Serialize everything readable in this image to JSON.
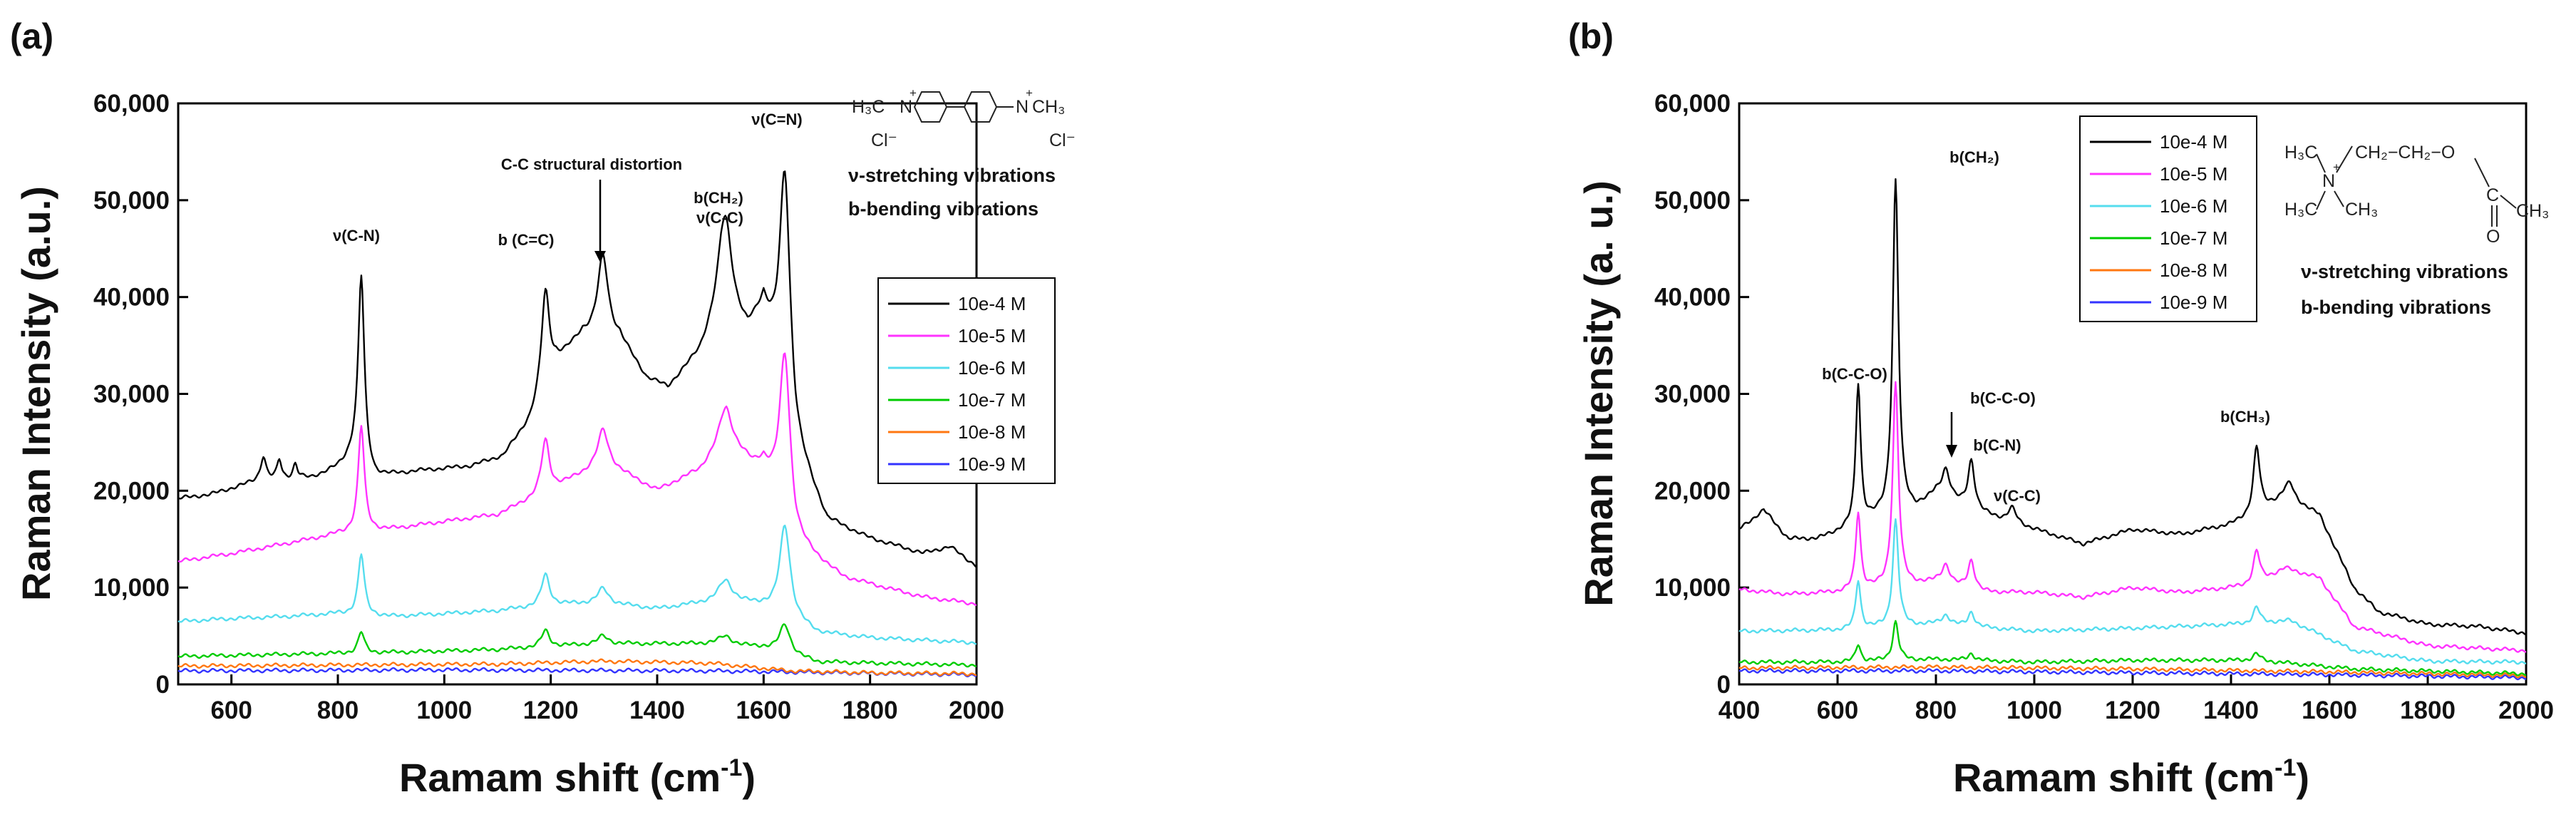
{
  "chart_data": [
    {
      "panel_label": "(a)",
      "type": "line",
      "xlabel": "Ramam shift (cm",
      "xlabel_sup": "-1",
      "xlabel_close": ")",
      "ylabel": "Raman Intensity (a.u.)",
      "xlim": [
        500,
        2000
      ],
      "ylim": [
        0,
        60000
      ],
      "xticks": [
        600,
        800,
        1000,
        1200,
        1400,
        1600,
        1800,
        2000
      ],
      "yticks": [
        0,
        10000,
        20000,
        30000,
        40000,
        50000,
        60000
      ],
      "ytick_labels": [
        "0",
        "10,000",
        "20,000",
        "30,000",
        "40,000",
        "50,000",
        "60,000"
      ],
      "legend": [
        "10e-4 M",
        "10e-5 M",
        "10e-6 M",
        "10e-7 M",
        "10e-8 M",
        "10e-9 M"
      ],
      "series": [
        {
          "name": "10e-4 M",
          "color": "#000000",
          "baseline": [
            [
              500,
              19200
            ],
            [
              560,
              19600
            ],
            [
              650,
              21000
            ],
            [
              750,
              21300
            ],
            [
              800,
              22300
            ],
            [
              830,
              23500
            ],
            [
              870,
              21300
            ],
            [
              950,
              22000
            ],
            [
              1050,
              22500
            ],
            [
              1110,
              23500
            ],
            [
              1160,
              27000
            ],
            [
              1210,
              33000
            ],
            [
              1260,
              36000
            ],
            [
              1330,
              35500
            ],
            [
              1380,
              31500
            ],
            [
              1420,
              30500
            ],
            [
              1480,
              34000
            ],
            [
              1520,
              38500
            ],
            [
              1570,
              36000
            ],
            [
              1600,
              38500
            ],
            [
              1660,
              24000
            ],
            [
              1720,
              16800
            ],
            [
              1800,
              15000
            ],
            [
              1900,
              13500
            ],
            [
              1950,
              14200
            ],
            [
              2000,
              12200
            ]
          ],
          "peaks": [
            [
              844,
              19500,
              7
            ],
            [
              1190,
              10000,
              9
            ],
            [
              1298,
              8500,
              12
            ],
            [
              1528,
              10000,
              15
            ],
            [
              1640,
              24000,
              12
            ],
            [
              660,
              2500,
              6
            ],
            [
              690,
              2000,
              5
            ],
            [
              720,
              1500,
              5
            ]
          ]
        },
        {
          "name": "10e-5 M",
          "color": "#ff33ff",
          "baseline": [
            [
              500,
              12700
            ],
            [
              600,
              13500
            ],
            [
              700,
              14500
            ],
            [
              800,
              15500
            ],
            [
              900,
              16000
            ],
            [
              1000,
              16800
            ],
            [
              1100,
              17500
            ],
            [
              1200,
              20000
            ],
            [
              1300,
              22800
            ],
            [
              1400,
              20000
            ],
            [
              1480,
              22000
            ],
            [
              1530,
              25000
            ],
            [
              1580,
              22500
            ],
            [
              1600,
              22500
            ],
            [
              1660,
              14500
            ],
            [
              1750,
              11000
            ],
            [
              1900,
              9000
            ],
            [
              2000,
              8300
            ]
          ],
          "peaks": [
            [
              844,
              11000,
              7
            ],
            [
              1190,
              5500,
              9
            ],
            [
              1298,
              3500,
              12
            ],
            [
              1528,
              3500,
              15
            ],
            [
              1640,
              17000,
              12
            ]
          ]
        },
        {
          "name": "10e-6 M",
          "color": "#55ddee",
          "baseline": [
            [
              500,
              6500
            ],
            [
              600,
              6800
            ],
            [
              700,
              7000
            ],
            [
              800,
              7300
            ],
            [
              900,
              7000
            ],
            [
              1000,
              7300
            ],
            [
              1100,
              7600
            ],
            [
              1200,
              8200
            ],
            [
              1300,
              8400
            ],
            [
              1400,
              7800
            ],
            [
              1530,
              8700
            ],
            [
              1600,
              8000
            ],
            [
              1700,
              5300
            ],
            [
              1800,
              4800
            ],
            [
              2000,
              4300
            ]
          ],
          "peaks": [
            [
              844,
              6300,
              7
            ],
            [
              1190,
              3200,
              9
            ],
            [
              1298,
              1500,
              12
            ],
            [
              1528,
              2000,
              15
            ],
            [
              1640,
              9500,
              12
            ]
          ]
        },
        {
          "name": "10e-7 M",
          "color": "#00cc00",
          "baseline": [
            [
              500,
              2900
            ],
            [
              700,
              3100
            ],
            [
              900,
              3300
            ],
            [
              1100,
              3600
            ],
            [
              1300,
              4200
            ],
            [
              1500,
              4200
            ],
            [
              1600,
              3800
            ],
            [
              1700,
              2300
            ],
            [
              2000,
              2000
            ]
          ],
          "peaks": [
            [
              844,
              2200,
              7
            ],
            [
              1190,
              1700,
              9
            ],
            [
              1298,
              800,
              12
            ],
            [
              1528,
              900,
              15
            ],
            [
              1640,
              3000,
              12
            ]
          ]
        },
        {
          "name": "10e-8 M",
          "color": "#ff7711",
          "baseline": [
            [
              500,
              1900
            ],
            [
              800,
              2000
            ],
            [
              1100,
              2100
            ],
            [
              1300,
              2400
            ],
            [
              1500,
              2200
            ],
            [
              1650,
              1400
            ],
            [
              1800,
              1200
            ],
            [
              2000,
              1100
            ]
          ],
          "peaks": []
        },
        {
          "name": "10e-9 M",
          "color": "#3333ff",
          "baseline": [
            [
              500,
              1400
            ],
            [
              1000,
              1500
            ],
            [
              1500,
              1400
            ],
            [
              2000,
              1000
            ]
          ],
          "peaks": []
        }
      ],
      "annotations": [
        "ν(C-N)",
        "b (C=C)",
        "C-C structural distortion",
        "b(CH₂)",
        "ν(C-C)",
        "ν(C=N)"
      ],
      "notes": [
        "ν-stretching vibrations",
        "b-bending vibrations"
      ],
      "molecule": {
        "left_group": "H₃C",
        "right_group": "CH₃",
        "left_charge": "+",
        "right_charge": "+",
        "n_label": "N",
        "counter_ion": "Cl⁻"
      }
    },
    {
      "panel_label": "(b)",
      "type": "line",
      "xlabel": "Ramam shift (cm",
      "xlabel_sup": "-1",
      "xlabel_close": ")",
      "ylabel": "Raman Intensity (a. u.)",
      "xlim": [
        400,
        2000
      ],
      "ylim": [
        0,
        60000
      ],
      "xticks": [
        400,
        600,
        800,
        1000,
        1200,
        1400,
        1600,
        1800,
        2000
      ],
      "yticks": [
        0,
        10000,
        20000,
        30000,
        40000,
        50000,
        60000
      ],
      "ytick_labels": [
        "0",
        "10,000",
        "20,000",
        "30,000",
        "40,000",
        "50,000",
        "60,000"
      ],
      "legend": [
        "10e-4 M",
        "10e-5 M",
        "10e-6 M",
        "10e-7 M",
        "10e-8 M",
        "10e-9 M"
      ],
      "series": [
        {
          "name": "10e-4 M",
          "color": "#000000",
          "baseline": [
            [
              400,
              16000
            ],
            [
              450,
              18000
            ],
            [
              500,
              15000
            ],
            [
              560,
              15000
            ],
            [
              620,
              16000
            ],
            [
              680,
              17000
            ],
            [
              760,
              18000
            ],
            [
              800,
              19500
            ],
            [
              900,
              17500
            ],
            [
              1000,
              16000
            ],
            [
              1100,
              14500
            ],
            [
              1200,
              16000
            ],
            [
              1300,
              15500
            ],
            [
              1400,
              16500
            ],
            [
              1450,
              17500
            ],
            [
              1510,
              19500
            ],
            [
              1580,
              17500
            ],
            [
              1650,
              10000
            ],
            [
              1700,
              7500
            ],
            [
              1800,
              6200
            ],
            [
              1900,
              6000
            ],
            [
              2000,
              5300
            ]
          ],
          "peaks": [
            [
              642,
              14500,
              6
            ],
            [
              718,
              34500,
              7
            ],
            [
              820,
              3000,
              10
            ],
            [
              872,
              5000,
              8
            ],
            [
              955,
              1500,
              10
            ],
            [
              1452,
              7000,
              8
            ],
            [
              1520,
              1500,
              10
            ]
          ]
        },
        {
          "name": "10e-5 M",
          "color": "#ff33ff",
          "baseline": [
            [
              400,
              9800
            ],
            [
              500,
              9300
            ],
            [
              600,
              9500
            ],
            [
              700,
              10000
            ],
            [
              800,
              10500
            ],
            [
              900,
              9500
            ],
            [
              1000,
              9500
            ],
            [
              1100,
              9000
            ],
            [
              1200,
              10000
            ],
            [
              1300,
              9500
            ],
            [
              1400,
              10000
            ],
            [
              1450,
              10300
            ],
            [
              1510,
              12000
            ],
            [
              1580,
              11000
            ],
            [
              1650,
              6000
            ],
            [
              1800,
              4000
            ],
            [
              2000,
              3500
            ]
          ],
          "peaks": [
            [
              642,
              8000,
              6
            ],
            [
              718,
              21000,
              7
            ],
            [
              820,
              2000,
              10
            ],
            [
              872,
              3000,
              8
            ],
            [
              1452,
              3500,
              8
            ]
          ]
        },
        {
          "name": "10e-6 M",
          "color": "#55ddee",
          "baseline": [
            [
              400,
              5500
            ],
            [
              600,
              5600
            ],
            [
              800,
              6200
            ],
            [
              1000,
              5500
            ],
            [
              1200,
              5800
            ],
            [
              1450,
              6300
            ],
            [
              1520,
              6600
            ],
            [
              1650,
              3500
            ],
            [
              1800,
              2400
            ],
            [
              2000,
              2300
            ]
          ],
          "peaks": [
            [
              642,
              5000,
              6
            ],
            [
              718,
              11000,
              7
            ],
            [
              820,
              1000,
              10
            ],
            [
              872,
              1500,
              8
            ],
            [
              1452,
              1700,
              8
            ]
          ]
        },
        {
          "name": "10e-7 M",
          "color": "#00cc00",
          "baseline": [
            [
              400,
              2300
            ],
            [
              600,
              2300
            ],
            [
              800,
              2600
            ],
            [
              1000,
              2300
            ],
            [
              1200,
              2500
            ],
            [
              1450,
              2500
            ],
            [
              1650,
              1600
            ],
            [
              2000,
              1100
            ]
          ],
          "peaks": [
            [
              642,
              1800,
              6
            ],
            [
              718,
              4000,
              7
            ],
            [
              872,
              700,
              8
            ],
            [
              1452,
              700,
              8
            ]
          ]
        },
        {
          "name": "10e-8 M",
          "color": "#ff7711",
          "baseline": [
            [
              400,
              1700
            ],
            [
              800,
              1800
            ],
            [
              1200,
              1600
            ],
            [
              1600,
              1300
            ],
            [
              2000,
              900
            ]
          ],
          "peaks": []
        },
        {
          "name": "10e-9 M",
          "color": "#3333ff",
          "baseline": [
            [
              400,
              1400
            ],
            [
              800,
              1400
            ],
            [
              1200,
              1200
            ],
            [
              1600,
              1000
            ],
            [
              2000,
              700
            ]
          ],
          "peaks": []
        }
      ],
      "annotations": [
        "b(C-C-O)",
        "b(CH₂)",
        "b(C-C-O)",
        "b(C-N)",
        "ν(C-C)",
        "b(CH₃)"
      ],
      "notes": [
        "ν-stretching vibrations",
        "b-bending vibrations"
      ],
      "molecule": {
        "methyl_top": "H₃C",
        "methyl_bottom": "H₃C",
        "methyl_right": "CH₃",
        "chain": "CH₂−CH₂−O",
        "carbonyl_o": "O",
        "carbonyl_c": "C",
        "terminal_ch3": "CH₃",
        "n_label": "N",
        "charge": "+"
      }
    }
  ]
}
